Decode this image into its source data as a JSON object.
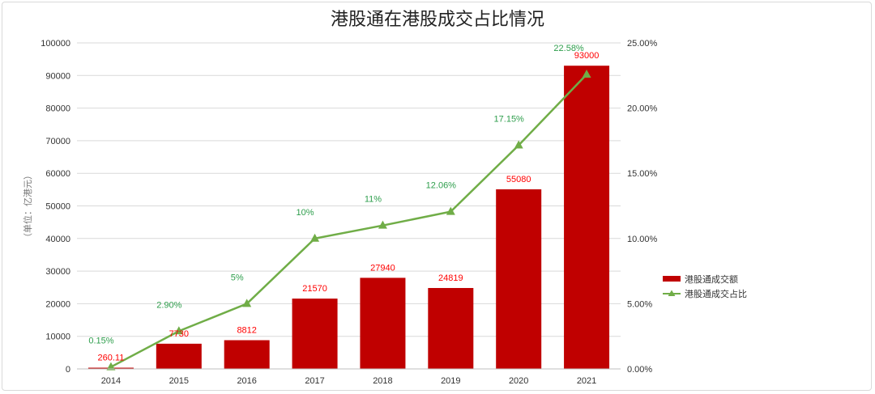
{
  "chart_data": {
    "type": "bar",
    "title": "港股通在港股成交占比情况",
    "ylabel": "（单位：亿港元）",
    "xlabel": "",
    "categories": [
      "2014",
      "2015",
      "2016",
      "2017",
      "2018",
      "2019",
      "2020",
      "2021"
    ],
    "ylim": [
      0,
      100000
    ],
    "y_ticks": [
      "0",
      "10000",
      "20000",
      "30000",
      "40000",
      "50000",
      "60000",
      "70000",
      "80000",
      "90000",
      "100000"
    ],
    "y2lim": [
      0,
      25
    ],
    "y2_ticks": [
      "0.00%",
      "5.00%",
      "10.00%",
      "15.00%",
      "20.00%",
      "25.00%"
    ],
    "grid": true,
    "legend_position": "right",
    "series": [
      {
        "name": "港股通成交额",
        "type": "bar",
        "axis": "left",
        "color": "#c00000",
        "values": [
          260.11,
          7730,
          8812,
          21570,
          27940,
          24819,
          55080,
          93000
        ],
        "labels": [
          "260.11",
          "7730",
          "8812",
          "21570",
          "27940",
          "24819",
          "55080",
          "93000"
        ]
      },
      {
        "name": "港股通成交占比",
        "type": "line",
        "axis": "right",
        "color": "#70ad47",
        "marker": "triangle",
        "values": [
          0.15,
          2.9,
          5,
          10,
          11,
          12.06,
          17.15,
          22.58
        ],
        "labels": [
          "0.15%",
          "2.90%",
          "5%",
          "10%",
          "11%",
          "12.06%",
          "17.15%",
          "22.58%"
        ]
      }
    ]
  }
}
